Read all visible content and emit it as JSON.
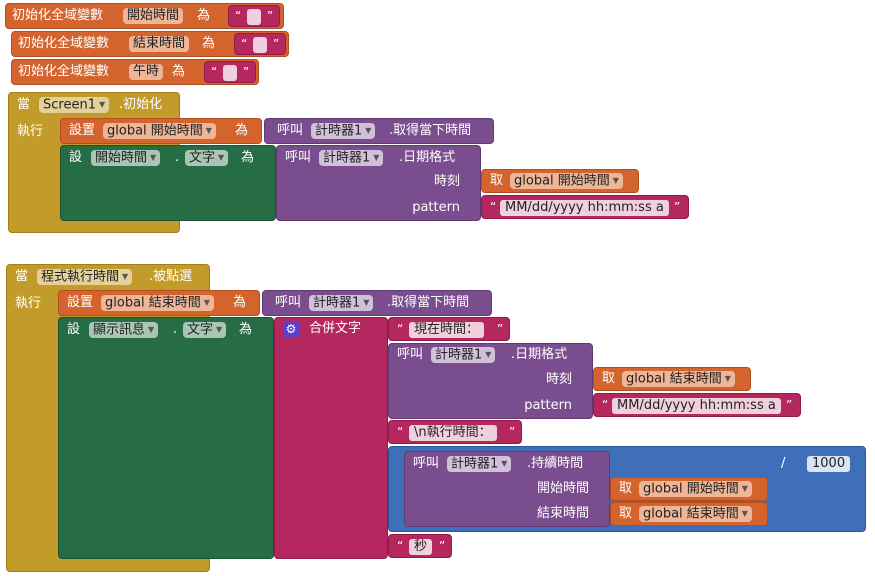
{
  "globals": [
    {
      "init_label": "初始化全域變數",
      "var": "開始時間",
      "as": "為",
      "q_open": "“",
      "q_close": "”"
    },
    {
      "init_label": "初始化全域變數",
      "var": "結束時間",
      "as": "為",
      "q_open": "“",
      "q_close": "”"
    },
    {
      "init_label": "初始化全域變數",
      "var": "午時",
      "as": "為",
      "q_open": "“",
      "q_close": "”"
    }
  ],
  "event1": {
    "when": "當",
    "component": "Screen1",
    "event": ".初始化",
    "do": "執行",
    "set1": {
      "set": "設置",
      "var": "global 開始時間",
      "as": "為",
      "call": "呼叫",
      "component": "計時器1",
      "method": ".取得當下時間"
    },
    "set2": {
      "set": "設",
      "component": "開始時間",
      "dot": ".",
      "prop": "文字",
      "as": "為",
      "call": "呼叫",
      "timer": "計時器1",
      "method": ".日期格式",
      "arg1_label": "時刻",
      "get": "取",
      "get_var": "global 開始時間",
      "arg2_label": "pattern",
      "pattern": "MM/dd/yyyy hh:mm:ss a"
    }
  },
  "event2": {
    "when": "當",
    "component": "程式執行時間",
    "event": ".被點選",
    "do": "執行",
    "set1": {
      "set": "設置",
      "var": "global 結束時間",
      "as": "為",
      "call": "呼叫",
      "component": "計時器1",
      "method": ".取得當下時間"
    },
    "set2": {
      "set": "設",
      "component": "顯示訊息",
      "dot": ".",
      "prop": "文字",
      "as": "為",
      "join": "合併文字",
      "str1": "現在時間：",
      "call": "呼叫",
      "timer": "計時器1",
      "method": ".日期格式",
      "arg1_label": "時刻",
      "get": "取",
      "get_var": "global 結束時間",
      "arg2_label": "pattern",
      "pattern": "MM/dd/yyyy hh:mm:ss a",
      "str2": "\\n執行時間：",
      "divide": "/",
      "duration_call": "呼叫",
      "duration_timer": "計時器1",
      "duration_method": ".持續時間",
      "start_label": "開始時間",
      "start_get": "取",
      "start_var": "global 開始時間",
      "end_label": "結束時間",
      "end_get": "取",
      "end_var": "global 結束時間",
      "divisor": "1000",
      "str3": "秒"
    }
  }
}
